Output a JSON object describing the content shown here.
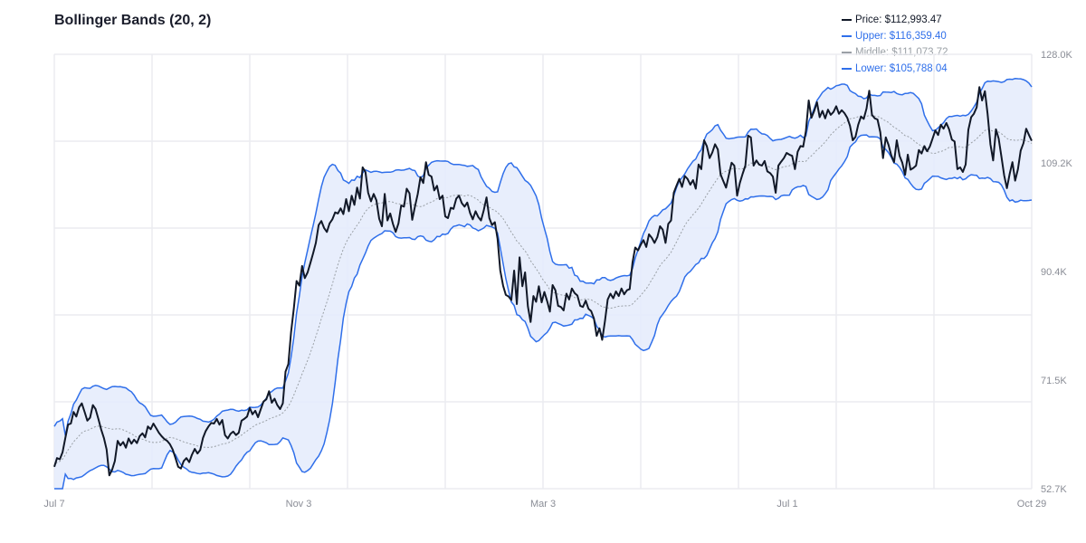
{
  "title": "Bollinger Bands (20, 2)",
  "legend": [
    {
      "label": "Price: $112,993.47",
      "color": "#111827"
    },
    {
      "label": "Upper: $116,359.40",
      "color": "#2f6fea"
    },
    {
      "label": "Middle: $111,073.72",
      "color": "#9aa0a6"
    },
    {
      "label": "Lower: $105,788.04",
      "color": "#2f6fea"
    }
  ],
  "colors": {
    "price": "#111827",
    "band": "#2f6fea",
    "band_fill": "#e6ecfc",
    "middle": "#9aa0a6",
    "grid": "#ebecf0"
  },
  "chart_data": {
    "type": "line",
    "title": "Bollinger Bands (20, 2)",
    "xlabel": "",
    "ylabel": "",
    "ylim": [
      52700,
      128000
    ],
    "x_tick_labels": [
      "Jul 7",
      "Nov 3",
      "Mar 3",
      "Jul 1",
      "Oct 29"
    ],
    "y_tick_labels": [
      "128.0K",
      "109.2K",
      "90.4K",
      "71.5K",
      "52.7K"
    ],
    "grid": true,
    "legend_position": "top-right",
    "period": 20,
    "std_dev": 2,
    "latest": {
      "price": 112993.47,
      "upper": 116359.4,
      "middle": 111073.72,
      "lower": 105788.04
    },
    "series": [
      {
        "name": "Price",
        "values": [
          56500,
          58000,
          57800,
          59000,
          61500,
          63800,
          64000,
          66000,
          65200,
          66800,
          67500,
          66000,
          64500,
          65000,
          67200,
          66500,
          64800,
          63000,
          61500,
          59500,
          55000,
          56000,
          57500,
          61000,
          60200,
          60800,
          59800,
          61400,
          60500,
          61200,
          60600,
          61800,
          62300,
          61600,
          63500,
          63000,
          64000,
          63200,
          62400,
          61800,
          61300,
          61000,
          60400,
          59500,
          58000,
          56500,
          56200,
          57500,
          58000,
          57300,
          58600,
          59600,
          58800,
          59400,
          61500,
          62700,
          63500,
          64100,
          64000,
          64800,
          63800,
          64600,
          62000,
          61400,
          62200,
          62600,
          62000,
          62400,
          64500,
          64800,
          65200,
          66700,
          65600,
          66200,
          65100,
          66500,
          67800,
          68200,
          69600,
          67600,
          68300,
          67200,
          66500,
          67500,
          73000,
          74300,
          79800,
          84000,
          88700,
          87900,
          91300,
          89200,
          90200,
          91800,
          93500,
          95300,
          98400,
          99100,
          97900,
          97200,
          98700,
          99400,
          100600,
          100400,
          101300,
          100300,
          102900,
          100800,
          103500,
          101900,
          104900,
          103000,
          108400,
          107600,
          104000,
          102500,
          103800,
          102700,
          99500,
          98200,
          103800,
          99200,
          100400,
          98600,
          97200,
          98700,
          101800,
          101600,
          104700,
          103900,
          99300,
          101600,
          103800,
          106700,
          105700,
          109300,
          107100,
          106800,
          104400,
          105200,
          102900,
          103500,
          99900,
          99600,
          101400,
          101200,
          103000,
          103500,
          102200,
          101600,
          102300,
          100500,
          99400,
          100800,
          99800,
          99200,
          101000,
          103200,
          99600,
          98400,
          98900,
          96000,
          90500,
          87900,
          86300,
          86000,
          85400,
          90500,
          84700,
          92800,
          87800,
          90200,
          84300,
          81600,
          86100,
          85100,
          87800,
          85000,
          86800,
          85200,
          83400,
          88000,
          87100,
          84400,
          84200,
          83600,
          86500,
          85500,
          87400,
          86600,
          86200,
          84400,
          84200,
          85300,
          83900,
          83500,
          82200,
          79200,
          80500,
          78500,
          81800,
          85500,
          86500,
          85700,
          86900,
          86100,
          87400,
          86400,
          87100,
          87300,
          91900,
          94500,
          94000,
          95000,
          95800,
          94600,
          96800,
          96200,
          95300,
          96300,
          98200,
          97600,
          95300,
          98600,
          99200,
          104000,
          105200,
          106400,
          105000,
          106900,
          106400,
          105400,
          106200,
          104700,
          108900,
          108100,
          113100,
          112100,
          110000,
          111000,
          112400,
          111500,
          107200,
          106000,
          104900,
          107100,
          109200,
          108700,
          103500,
          105700,
          107300,
          108700,
          113900,
          113600,
          108700,
          109600,
          108900,
          108700,
          109500,
          107700,
          107400,
          106800,
          104000,
          108700,
          109400,
          110000,
          110900,
          110600,
          110400,
          108100,
          111100,
          112100,
          112000,
          114700,
          120000,
          117000,
          118200,
          119700,
          117100,
          118200,
          116900,
          118400,
          117500,
          118000,
          119000,
          117700,
          118300,
          117800,
          117000,
          115600,
          113100,
          113700,
          115800,
          117200,
          116800,
          118600,
          121700,
          117500,
          116900,
          116700,
          114500,
          110000,
          113600,
          112300,
          110500,
          109300,
          113100,
          110400,
          109200,
          107100,
          110600,
          108000,
          108300,
          108700,
          111400,
          110800,
          112100,
          111200,
          112000,
          113400,
          114800,
          114000,
          115800,
          115100,
          116100,
          115000,
          113200,
          112900,
          108100,
          108400,
          107600,
          108900,
          114900,
          117100,
          117700,
          118800,
          122300,
          120000,
          121600,
          117600,
          112400,
          109600,
          115000,
          113400,
          110300,
          107000,
          104800,
          107300,
          109300,
          106100,
          108100,
          111300,
          112600,
          115100,
          114000,
          113000
        ]
      },
      {
        "name": "Upper",
        "values": []
      },
      {
        "name": "Middle",
        "values": []
      },
      {
        "name": "Lower",
        "values": []
      }
    ]
  }
}
